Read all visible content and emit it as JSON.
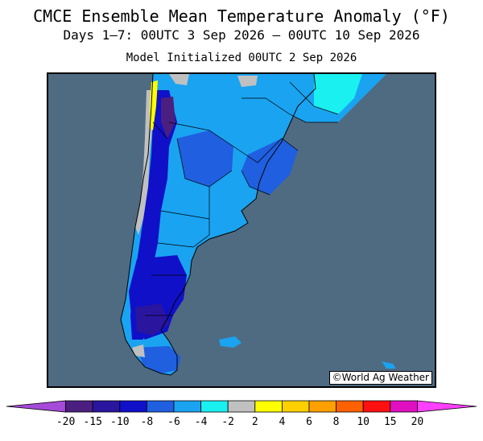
{
  "header": {
    "title": "CMCE Ensemble Mean Temperature Anomaly (°F)",
    "subtitle": "Days 1–7: 00UTC 3 Sep 2026 – 00UTC 10 Sep 2026",
    "init": "Model Initialized 00UTC 2 Sep 2026"
  },
  "map": {
    "credit": "©World Ag Weather",
    "ocean_color": "#4f6b82"
  },
  "legend": {
    "ticks": [
      "-20",
      "-15",
      "-10",
      "-8",
      "-6",
      "-4",
      "-2",
      "2",
      "4",
      "6",
      "8",
      "10",
      "15",
      "20"
    ],
    "colors": [
      "#a64ad9",
      "#4b1f80",
      "#2a159f",
      "#1010c8",
      "#1f5fe0",
      "#1aa3f0",
      "#1af0f0",
      "#c0c0c0",
      "#ffff00",
      "#ffd000",
      "#ffa000",
      "#ff6000",
      "#ff1010",
      "#e010c0",
      "#ff40ff"
    ]
  }
}
